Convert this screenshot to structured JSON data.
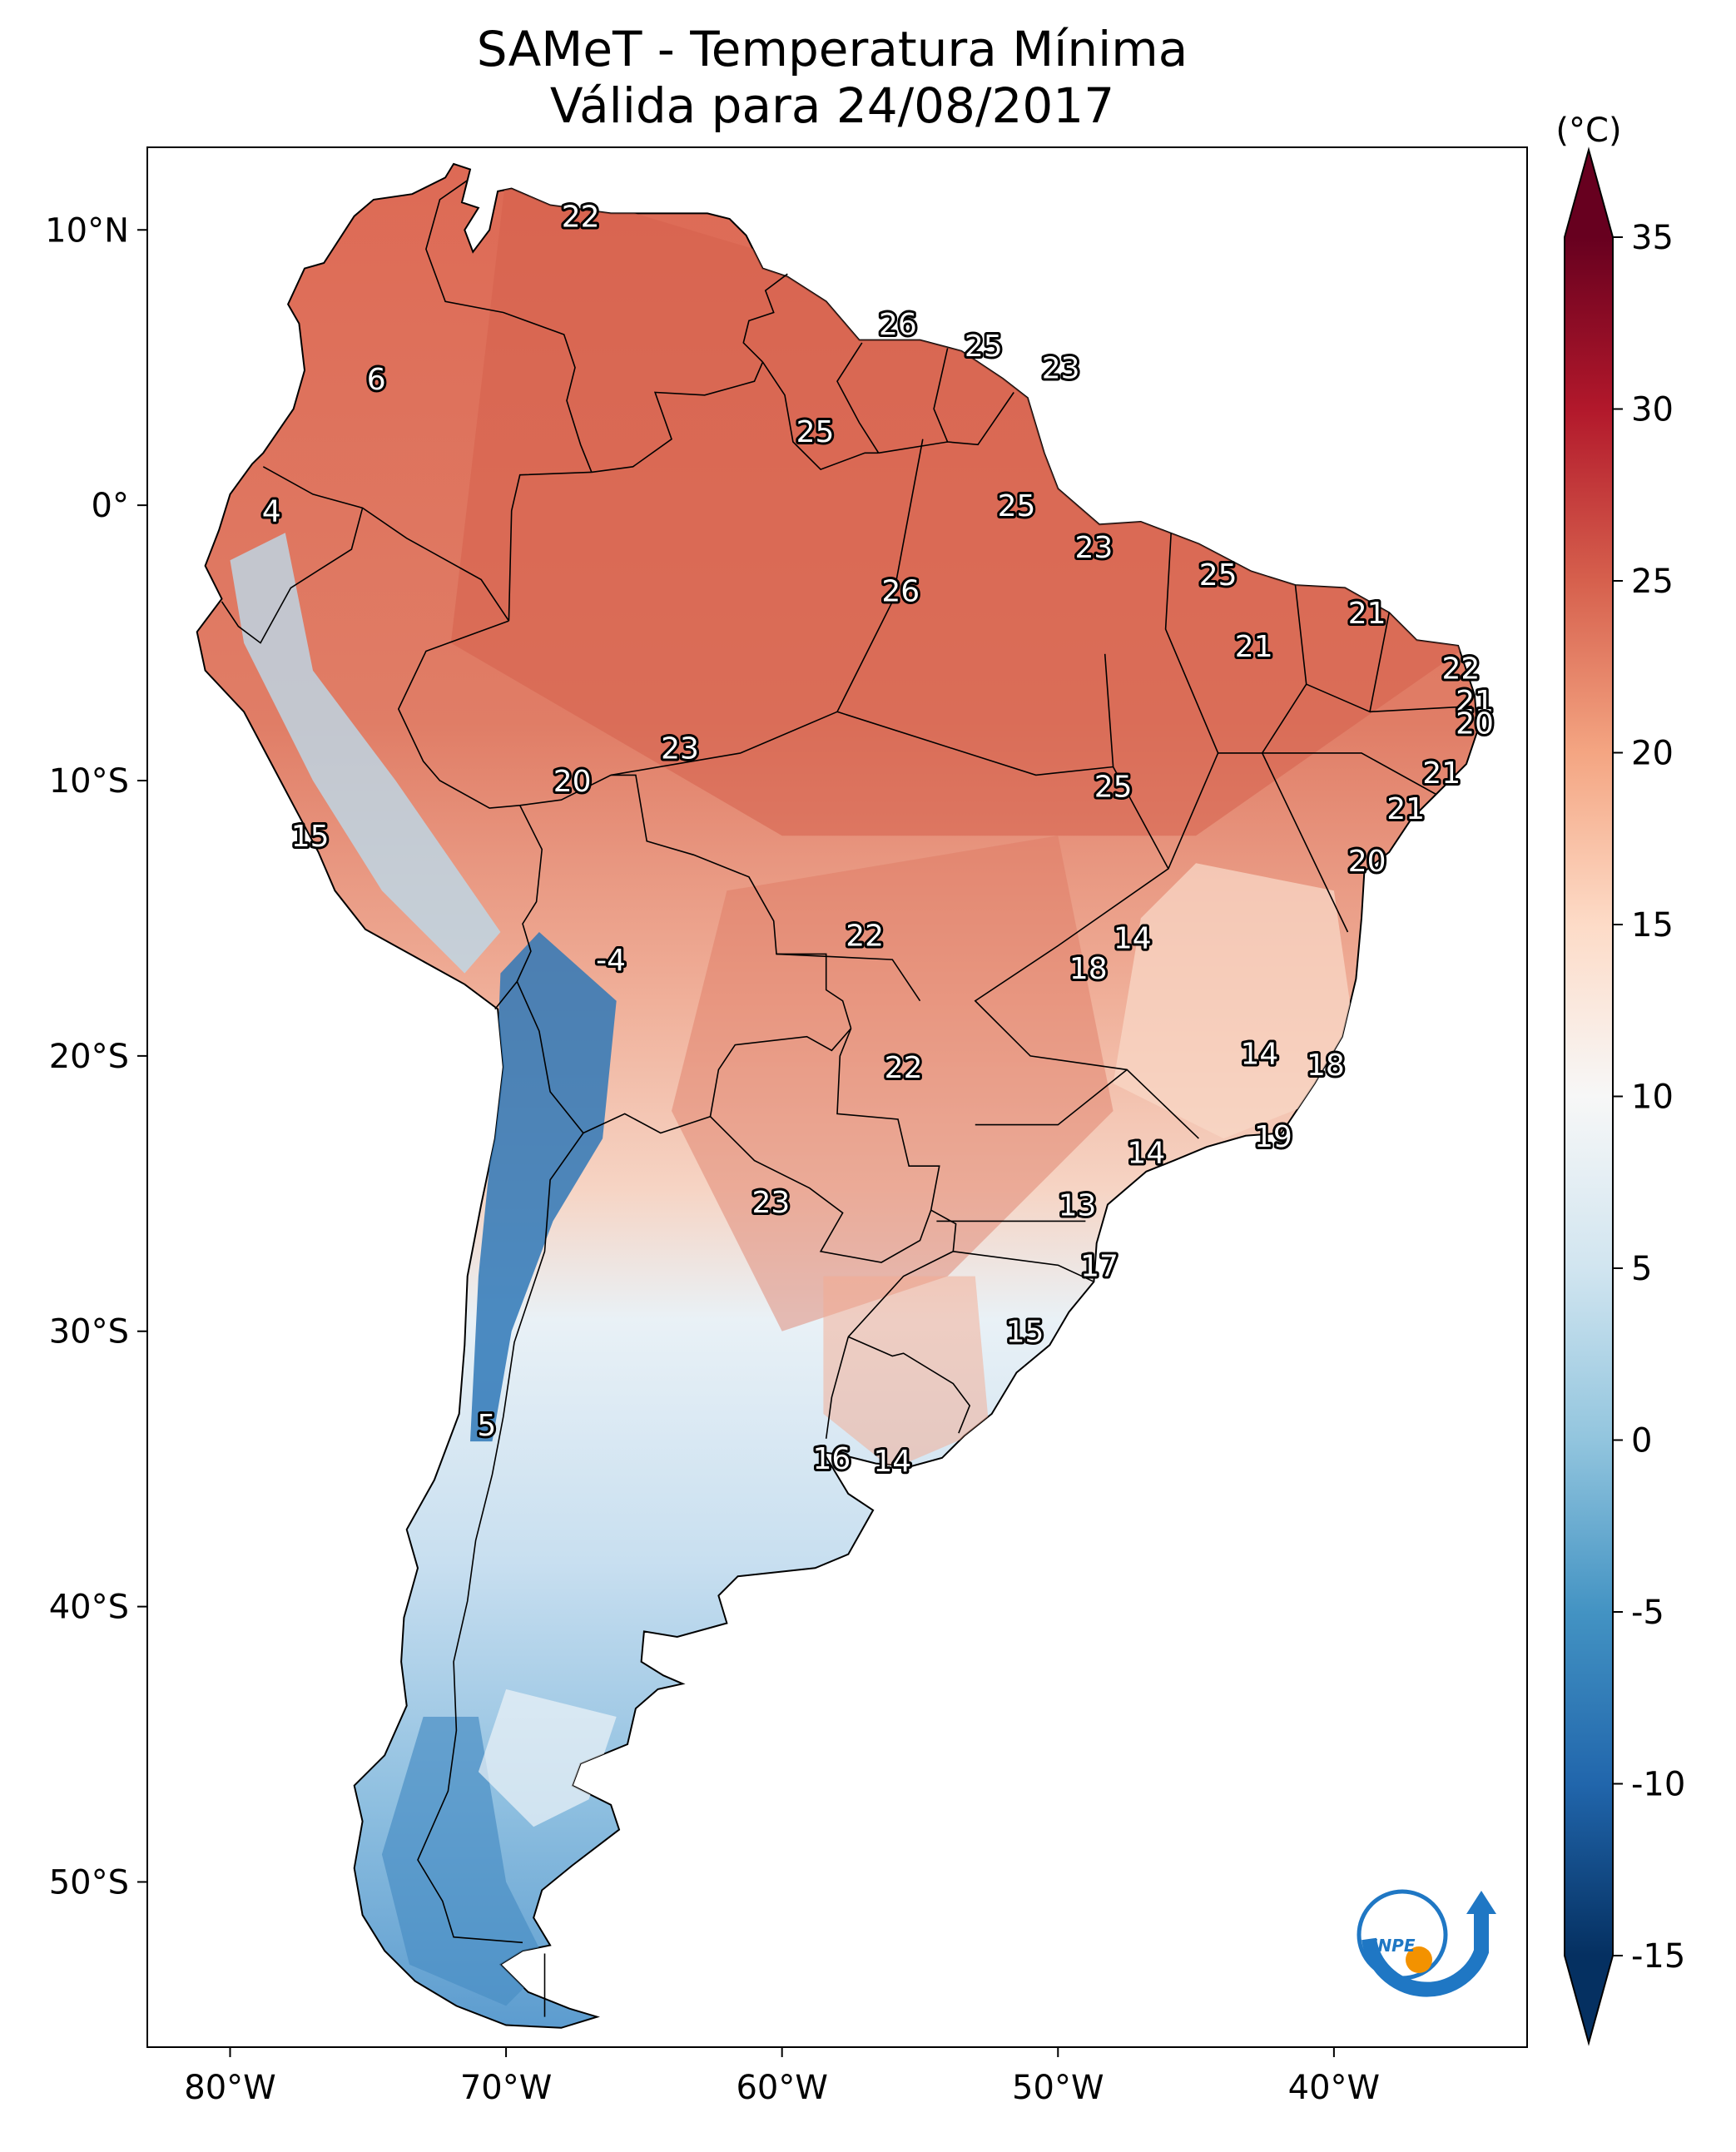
{
  "title": "SAMeT - Temperatura Mínima",
  "subtitle": "Válida para 24/08/2017",
  "colorbar": {
    "unit": "(°C)",
    "ticks": [
      "35",
      "30",
      "25",
      "20",
      "15",
      "10",
      "5",
      "0",
      "-5",
      "-10",
      "-15"
    ],
    "range": [
      -15,
      35
    ],
    "extend": "both",
    "colormap": "RdBu_r",
    "colors": [
      "#053061",
      "#2166ac",
      "#4393c3",
      "#92c5de",
      "#d1e5f0",
      "#f7f7f7",
      "#fddbc7",
      "#f4a582",
      "#d6604d",
      "#b2182b",
      "#67001f"
    ]
  },
  "axes": {
    "lon_ticks": [
      "80°W",
      "70°W",
      "60°W",
      "50°W",
      "40°W"
    ],
    "lat_ticks": [
      "10°N",
      "0°",
      "10°S",
      "20°S",
      "30°S",
      "40°S",
      "50°S"
    ],
    "lon_range": [
      -83,
      -33
    ],
    "lat_range": [
      -56,
      13
    ]
  },
  "labels": [
    {
      "lon": -67.3,
      "lat": 10.5,
      "value": "22"
    },
    {
      "lon": -55.8,
      "lat": 6.6,
      "value": "26"
    },
    {
      "lon": -52.7,
      "lat": 5.8,
      "value": "25"
    },
    {
      "lon": -49.9,
      "lat": 5.0,
      "value": "23"
    },
    {
      "lon": -74.7,
      "lat": 4.6,
      "value": "6"
    },
    {
      "lon": -58.8,
      "lat": 2.7,
      "value": "25"
    },
    {
      "lon": -78.5,
      "lat": -0.2,
      "value": "4"
    },
    {
      "lon": -51.5,
      "lat": 0.0,
      "value": "25"
    },
    {
      "lon": -48.7,
      "lat": -1.5,
      "value": "23"
    },
    {
      "lon": -44.2,
      "lat": -2.5,
      "value": "25"
    },
    {
      "lon": -38.8,
      "lat": -3.9,
      "value": "21"
    },
    {
      "lon": -42.9,
      "lat": -5.1,
      "value": "21"
    },
    {
      "lon": -55.7,
      "lat": -3.1,
      "value": "26"
    },
    {
      "lon": -35.4,
      "lat": -5.9,
      "value": "22"
    },
    {
      "lon": -34.9,
      "lat": -7.1,
      "value": "21"
    },
    {
      "lon": -34.9,
      "lat": -7.9,
      "value": "20"
    },
    {
      "lon": -63.7,
      "lat": -8.8,
      "value": "23"
    },
    {
      "lon": -67.6,
      "lat": -10.0,
      "value": "20"
    },
    {
      "lon": -36.1,
      "lat": -9.7,
      "value": "21"
    },
    {
      "lon": -48.0,
      "lat": -10.2,
      "value": "25"
    },
    {
      "lon": -37.4,
      "lat": -11.0,
      "value": "21"
    },
    {
      "lon": -77.1,
      "lat": -12.0,
      "value": "15"
    },
    {
      "lon": -38.8,
      "lat": -12.9,
      "value": "20"
    },
    {
      "lon": -66.2,
      "lat": -16.5,
      "value": "-4"
    },
    {
      "lon": -57.0,
      "lat": -15.6,
      "value": "22"
    },
    {
      "lon": -47.3,
      "lat": -15.7,
      "value": "14"
    },
    {
      "lon": -48.9,
      "lat": -16.8,
      "value": "18"
    },
    {
      "lon": -55.6,
      "lat": -20.4,
      "value": "22"
    },
    {
      "lon": -42.7,
      "lat": -19.9,
      "value": "14"
    },
    {
      "lon": -40.3,
      "lat": -20.3,
      "value": "18"
    },
    {
      "lon": -42.2,
      "lat": -22.9,
      "value": "19"
    },
    {
      "lon": -46.8,
      "lat": -23.5,
      "value": "14"
    },
    {
      "lon": -60.4,
      "lat": -25.3,
      "value": "23"
    },
    {
      "lon": -49.3,
      "lat": -25.4,
      "value": "13"
    },
    {
      "lon": -48.5,
      "lat": -27.6,
      "value": "17"
    },
    {
      "lon": -51.2,
      "lat": -30.0,
      "value": "15"
    },
    {
      "lon": -70.7,
      "lat": -33.4,
      "value": "5"
    },
    {
      "lon": -58.2,
      "lat": -34.6,
      "value": "16"
    },
    {
      "lon": -56.0,
      "lat": -34.7,
      "value": "14"
    }
  ],
  "logo": {
    "text": "INPE",
    "blue": "#1f77c4",
    "orange": "#f39200"
  }
}
